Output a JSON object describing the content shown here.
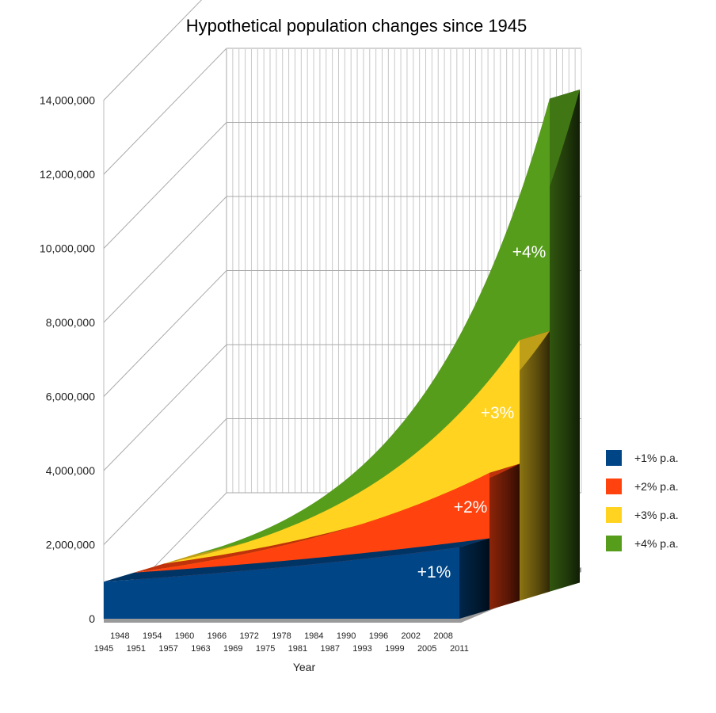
{
  "chart_data": {
    "type": "area",
    "stacked": true,
    "title": "Hypothetical population changes since 1945",
    "xlabel": "Year",
    "ylabel": "",
    "ylim": [
      0,
      14000000
    ],
    "yticks": [
      0,
      2000000,
      4000000,
      6000000,
      8000000,
      10000000,
      12000000,
      14000000
    ],
    "ytick_labels": [
      "0",
      "2,000,000",
      "4,000,000",
      "6,000,000",
      "8,000,000",
      "10,000,000",
      "12,000,000",
      "14,000,000"
    ],
    "x_start": 1945,
    "x_end": 2011,
    "xticks_upper": [
      "1948",
      "1954",
      "1960",
      "1966",
      "1972",
      "1978",
      "1984",
      "1990",
      "1996",
      "2002",
      "2008"
    ],
    "xticks_lower": [
      "1945",
      "1951",
      "1957",
      "1963",
      "1969",
      "1975",
      "1981",
      "1987",
      "1993",
      "1999",
      "2005",
      "2011"
    ],
    "base_population": 1000000,
    "grid": true,
    "legend_position": "right",
    "series": [
      {
        "name": "+1% p.a.",
        "label": "+1%",
        "rate": 0.01,
        "color": "#004586"
      },
      {
        "name": "+2% p.a.",
        "label": "+2%",
        "rate": 0.02,
        "color": "#ff420e"
      },
      {
        "name": "+3% p.a.",
        "label": "+3%",
        "rate": 0.03,
        "color": "#ffd320"
      },
      {
        "name": "+4% p.a.",
        "label": "+4%",
        "rate": 0.04,
        "color": "#579d1c"
      }
    ]
  }
}
